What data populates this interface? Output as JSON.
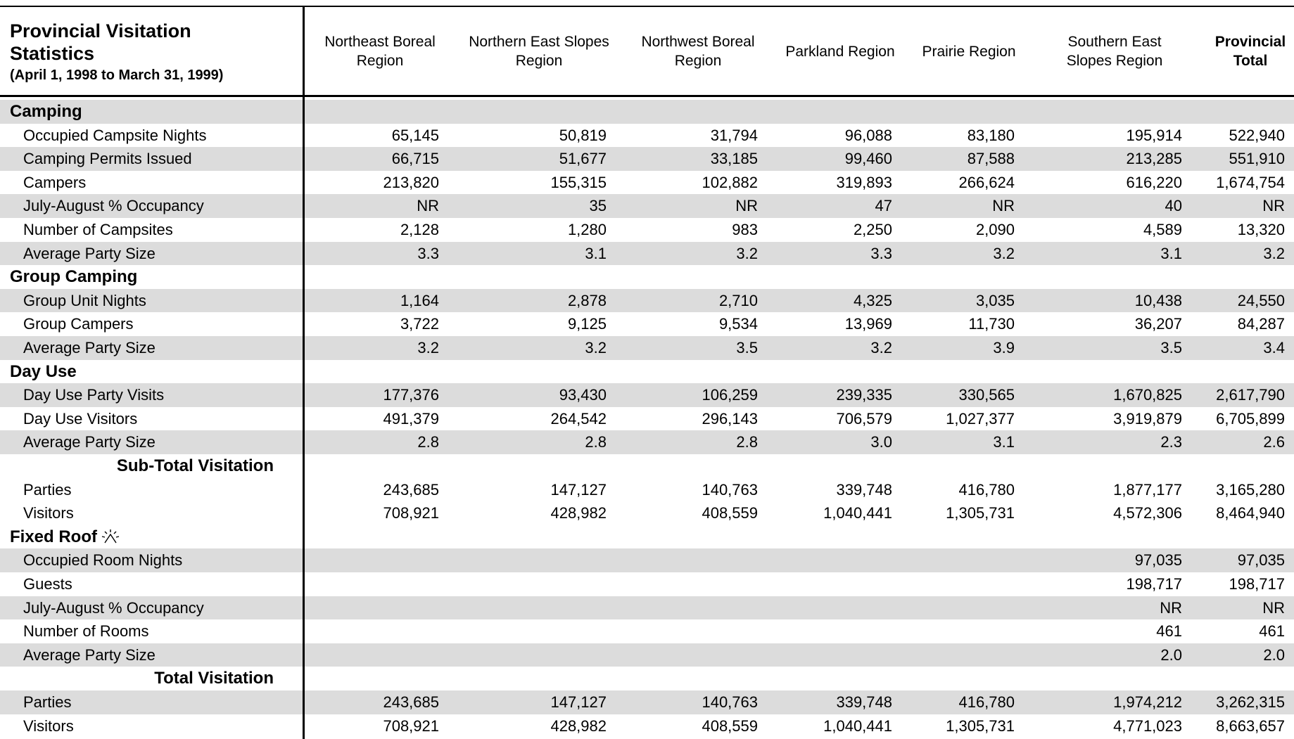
{
  "header": {
    "title": "Provincial Visitation Statistics",
    "subtitle": "(April 1, 1998 to March 31, 1999)"
  },
  "columns": [
    "Northeast Boreal Region",
    "Northern East Slopes Region",
    "Northwest Boreal Region",
    "Parkland Region",
    "Prairie Region",
    "Southern East Slopes Region",
    "Provincial Total"
  ],
  "sections": [
    {
      "title": "Camping",
      "rows": [
        {
          "label": "Occupied Campsite Nights",
          "values": [
            "65,145",
            "50,819",
            "31,794",
            "96,088",
            "83,180",
            "195,914",
            "522,940"
          ]
        },
        {
          "label": "Camping Permits Issued",
          "values": [
            "66,715",
            "51,677",
            "33,185",
            "99,460",
            "87,588",
            "213,285",
            "551,910"
          ]
        },
        {
          "label": "Campers",
          "values": [
            "213,820",
            "155,315",
            "102,882",
            "319,893",
            "266,624",
            "616,220",
            "1,674,754"
          ]
        },
        {
          "label": "July-August % Occupancy",
          "values": [
            "NR",
            "35",
            "NR",
            "47",
            "NR",
            "40",
            "NR"
          ]
        },
        {
          "label": "Number of Campsites",
          "values": [
            "2,128",
            "1,280",
            "983",
            "2,250",
            "2,090",
            "4,589",
            "13,320"
          ]
        },
        {
          "label": "Average Party Size",
          "values": [
            "3.3",
            "3.1",
            "3.2",
            "3.3",
            "3.2",
            "3.1",
            "3.2"
          ]
        }
      ]
    },
    {
      "title": "Group Camping",
      "rows": [
        {
          "label": "Group Unit Nights",
          "values": [
            "1,164",
            "2,878",
            "2,710",
            "4,325",
            "3,035",
            "10,438",
            "24,550"
          ]
        },
        {
          "label": "Group Campers",
          "values": [
            "3,722",
            "9,125",
            "9,534",
            "13,969",
            "11,730",
            "36,207",
            "84,287"
          ]
        },
        {
          "label": "Average Party Size",
          "values": [
            "3.2",
            "3.2",
            "3.5",
            "3.2",
            "3.9",
            "3.5",
            "3.4"
          ]
        }
      ]
    },
    {
      "title": "Day Use",
      "rows": [
        {
          "label": "Day Use Party Visits",
          "values": [
            "177,376",
            "93,430",
            "106,259",
            "239,335",
            "330,565",
            "1,670,825",
            "2,617,790"
          ]
        },
        {
          "label": "Day Use Visitors",
          "values": [
            "491,379",
            "264,542",
            "296,143",
            "706,579",
            "1,027,377",
            "3,919,879",
            "6,705,899"
          ]
        },
        {
          "label": "Average Party Size",
          "values": [
            "2.8",
            "2.8",
            "2.8",
            "3.0",
            "3.1",
            "2.3",
            "2.6"
          ]
        }
      ]
    },
    {
      "title": "Sub-Total Visitation",
      "rows": [
        {
          "label": "Parties",
          "values": [
            "243,685",
            "147,127",
            "140,763",
            "339,748",
            "416,780",
            "1,877,177",
            "3,165,280"
          ]
        },
        {
          "label": "Visitors",
          "values": [
            "708,921",
            "428,982",
            "408,559",
            "1,040,441",
            "1,305,731",
            "4,572,306",
            "8,464,940"
          ]
        }
      ]
    },
    {
      "title": "Fixed Roof",
      "rows": [
        {
          "label": "Occupied Room Nights",
          "values": [
            null,
            null,
            null,
            null,
            null,
            "97,035",
            "97,035"
          ]
        },
        {
          "label": "Guests",
          "values": [
            null,
            null,
            null,
            null,
            null,
            "198,717",
            "198,717"
          ]
        },
        {
          "label": "July-August % Occupancy",
          "values": [
            null,
            null,
            null,
            null,
            null,
            "NR",
            "NR"
          ]
        },
        {
          "label": "Number of Rooms",
          "values": [
            null,
            null,
            null,
            null,
            null,
            "461",
            "461"
          ]
        },
        {
          "label": "Average Party Size",
          "values": [
            null,
            null,
            null,
            null,
            null,
            "2.0",
            "2.0"
          ]
        }
      ]
    },
    {
      "title": "Total Visitation",
      "rows": [
        {
          "label": "Parties",
          "values": [
            "243,685",
            "147,127",
            "140,763",
            "339,748",
            "416,780",
            "1,974,212",
            "3,262,315"
          ]
        },
        {
          "label": "Visitors",
          "values": [
            "708,921",
            "428,982",
            "408,559",
            "1,040,441",
            "1,305,731",
            "4,771,023",
            "8,663,657"
          ]
        }
      ]
    }
  ]
}
